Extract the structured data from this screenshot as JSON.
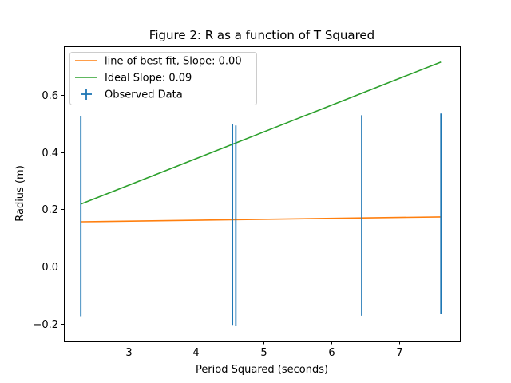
{
  "chart_data": {
    "type": "line",
    "title": "Figure 2: R as a function of T Squared",
    "xlabel": "Period Squared (seconds)",
    "ylabel": "Radius (m)",
    "xlim": [
      2.05,
      7.9
    ],
    "ylim": [
      -0.26,
      0.77
    ],
    "xticks": [
      3,
      4,
      5,
      6,
      7
    ],
    "yticks": [
      -0.2,
      0.0,
      0.2,
      0.4,
      0.6
    ],
    "ytick_labels": [
      "−0.2",
      "0.0",
      "0.2",
      "0.4",
      "0.6"
    ],
    "legend_position": "upper-left",
    "series": [
      {
        "name": "line of best fit, Slope: 0.00",
        "kind": "line",
        "color": "#ff7f0e",
        "x": [
          2.3,
          7.62
        ],
        "y": [
          0.156,
          0.173
        ]
      },
      {
        "name": "Ideal Slope: 0.09",
        "kind": "line",
        "color": "#2ca02c",
        "x": [
          2.3,
          7.62
        ],
        "y": [
          0.218,
          0.715
        ]
      },
      {
        "name": "Observed Data",
        "kind": "errorbar",
        "color": "#1f77b4",
        "points": [
          {
            "x": 2.3,
            "y_low": -0.175,
            "y_high": 0.527
          },
          {
            "x": 4.54,
            "y_low": -0.205,
            "y_high": 0.497
          },
          {
            "x": 4.59,
            "y_low": -0.209,
            "y_high": 0.493
          },
          {
            "x": 6.45,
            "y_low": -0.173,
            "y_high": 0.529
          },
          {
            "x": 7.62,
            "y_low": -0.167,
            "y_high": 0.535
          }
        ]
      }
    ]
  }
}
